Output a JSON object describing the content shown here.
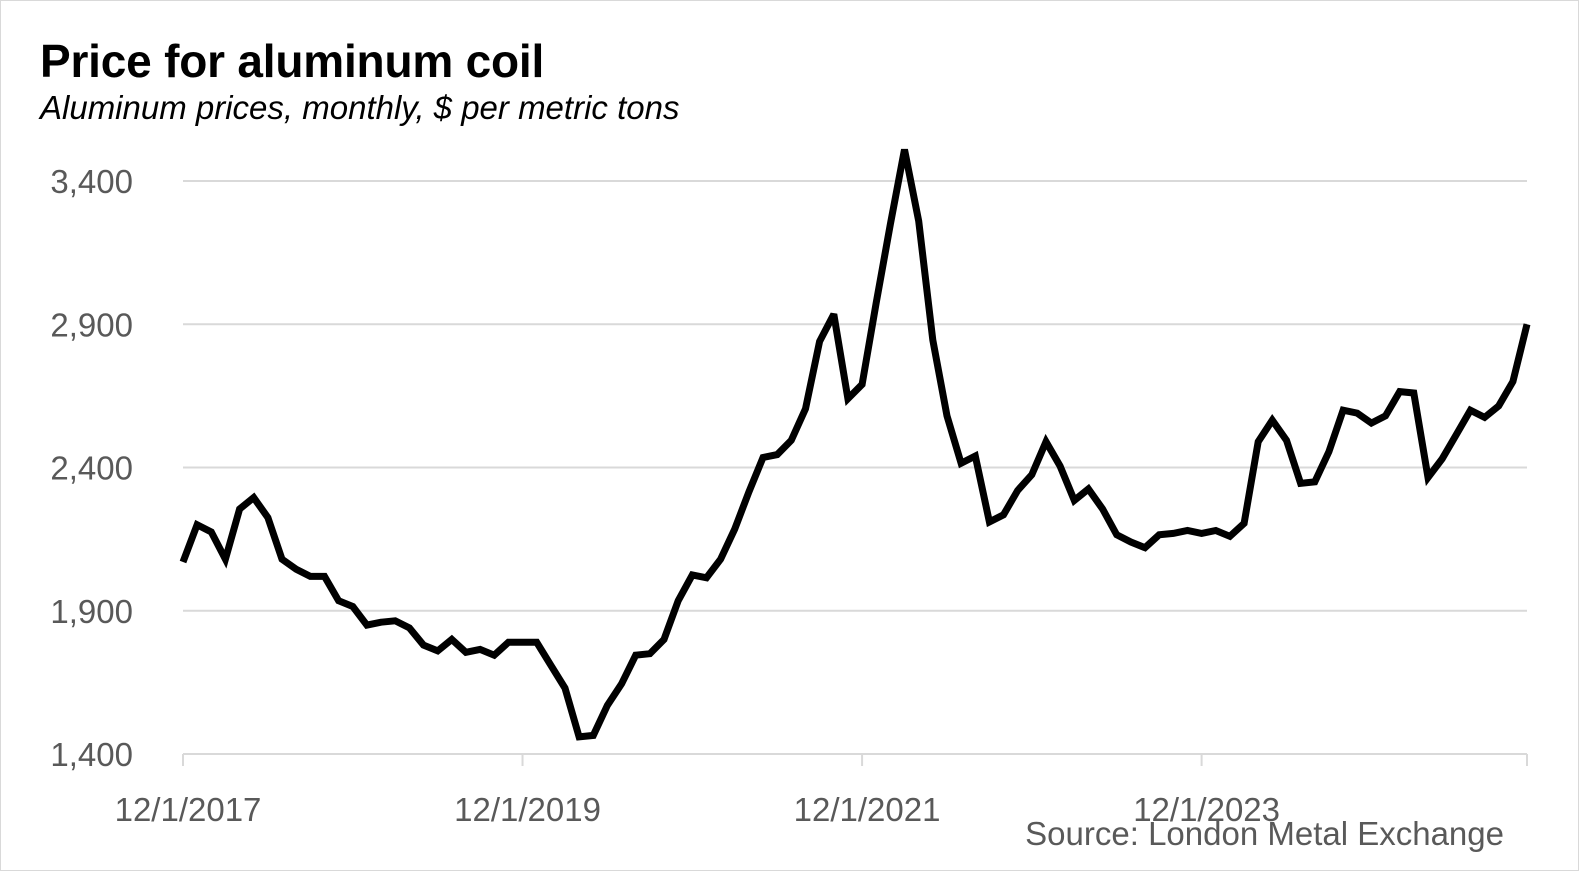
{
  "chart_data": {
    "type": "line",
    "title": "Price for aluminum coil",
    "subtitle": "Aluminum prices, monthly, $ per metric tons",
    "source": "Source: London Metal Exchange",
    "xlabel": "",
    "ylabel": "",
    "ylim": [
      1400,
      3500
    ],
    "yticks": [
      1400,
      1900,
      2400,
      2900,
      3400
    ],
    "ytick_labels": [
      "1,400",
      "1,900",
      "2,400",
      "2,900",
      "3,400"
    ],
    "xtick_labels": [
      "12/1/2017",
      "12/1/2019",
      "12/1/2021",
      "12/1/2023"
    ],
    "xtick_index": [
      0,
      24,
      48,
      72
    ],
    "x_start": "12/1/2017",
    "x_end": "12/1/2025",
    "grid": "horizontal",
    "colors": {
      "line": "#000000",
      "grid": "#d9d9d9",
      "axis_text": "#595959"
    },
    "series": [
      {
        "values": [
          2070,
          2200,
          2175,
          2080,
          2255,
          2295,
          2225,
          2080,
          2045,
          2020,
          2020,
          1935,
          1915,
          1850,
          1860,
          1865,
          1840,
          1780,
          1760,
          1800,
          1755,
          1765,
          1745,
          1790,
          1790,
          1790,
          1710,
          1630,
          1460,
          1465,
          1570,
          1645,
          1745,
          1750,
          1800,
          1935,
          2025,
          2015,
          2080,
          2185,
          2315,
          2435,
          2445,
          2495,
          2605,
          2840,
          2935,
          2640,
          2690,
          2975,
          3250,
          3510,
          3260,
          2845,
          2580,
          2415,
          2440,
          2210,
          2235,
          2320,
          2375,
          2490,
          2405,
          2285,
          2325,
          2255,
          2165,
          2140,
          2120,
          2165,
          2170,
          2180,
          2170,
          2180,
          2160,
          2205,
          2490,
          2565,
          2495,
          2345,
          2350,
          2455,
          2600,
          2590,
          2555,
          2580,
          2665,
          2660,
          2365,
          2430,
          2515,
          2600,
          2575,
          2615,
          2700,
          2900
        ]
      }
    ]
  }
}
